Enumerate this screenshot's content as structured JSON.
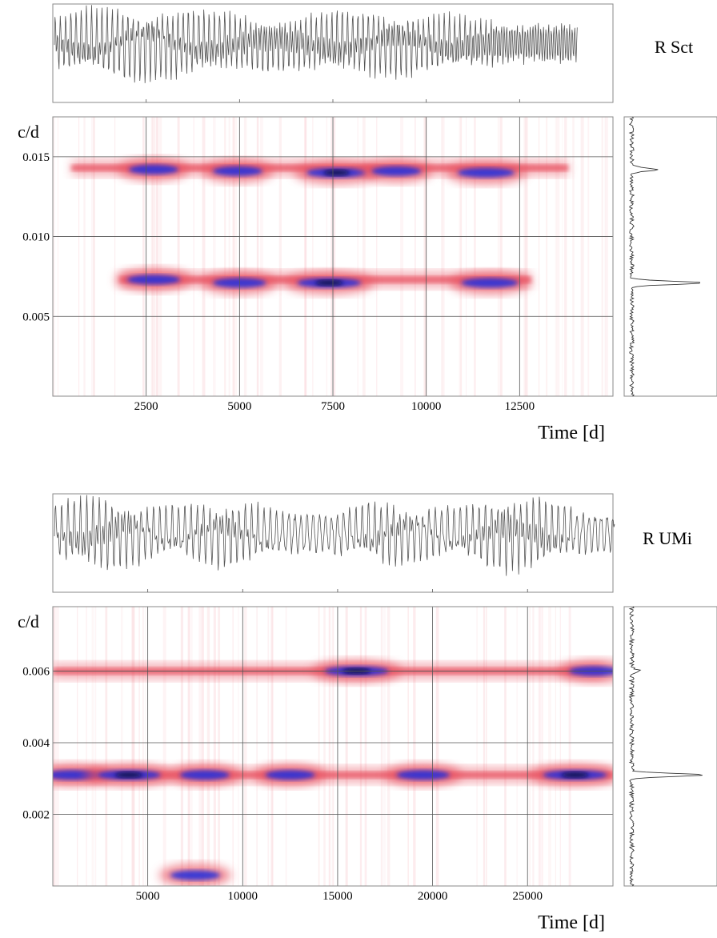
{
  "chart_data": [
    {
      "type": "heatmap",
      "title": "R Sct",
      "ylabel": "c/d",
      "xlabel": "Time [d]",
      "xlim": [
        0,
        15000
      ],
      "ylim": [
        0,
        0.0175
      ],
      "x_ticks": [
        2500,
        5000,
        7500,
        10000,
        12500
      ],
      "y_ticks": [
        0.005,
        0.01,
        0.015
      ],
      "x_tick_labels": [
        "2500",
        "5000",
        "7500",
        "10000",
        "12500"
      ],
      "y_tick_labels": [
        "0.005",
        "0.010",
        "0.015"
      ],
      "grid": true,
      "colors": {
        "low": "#ffffff",
        "mid": "#e8505f",
        "high": "#1e2fe0",
        "peak": "#0a0a40"
      },
      "ridges": [
        {
          "freq": 0.0143,
          "x": [
            500,
            13800
          ]
        },
        {
          "freq": 0.0073,
          "x": [
            1800,
            12800
          ]
        }
      ],
      "peaks": [
        {
          "x": 2700,
          "freq": 0.0142,
          "strength": 0.6
        },
        {
          "x": 4950,
          "freq": 0.0141,
          "strength": 0.6
        },
        {
          "x": 7600,
          "freq": 0.014,
          "strength": 0.9
        },
        {
          "x": 9200,
          "freq": 0.0141,
          "strength": 0.6
        },
        {
          "x": 11600,
          "freq": 0.014,
          "strength": 0.8
        },
        {
          "x": 2700,
          "freq": 0.0073,
          "strength": 0.7
        },
        {
          "x": 5000,
          "freq": 0.0071,
          "strength": 0.7
        },
        {
          "x": 7400,
          "freq": 0.0071,
          "strength": 1.0
        },
        {
          "x": 11700,
          "freq": 0.0071,
          "strength": 0.8
        }
      ],
      "time_series_range": [
        0,
        14000
      ],
      "side_spectrum_peaks": [
        {
          "freq": 0.0142,
          "amp": 0.35
        },
        {
          "freq": 0.0071,
          "amp": 1.0
        }
      ]
    },
    {
      "type": "heatmap",
      "title": "R UMi",
      "ylabel": "c/d",
      "xlabel": "Time [d]",
      "xlim": [
        0,
        29500
      ],
      "ylim": [
        0,
        0.0078
      ],
      "x_ticks": [
        5000,
        10000,
        15000,
        20000,
        25000
      ],
      "y_ticks": [
        0.002,
        0.004,
        0.006
      ],
      "x_tick_labels": [
        "5000",
        "10000",
        "15000",
        "20000",
        "25000"
      ],
      "y_tick_labels": [
        "0.002",
        "0.004",
        "0.006"
      ],
      "grid": true,
      "colors": {
        "low": "#ffffff",
        "mid": "#e8505f",
        "high": "#1e2fe0",
        "peak": "#0a0a40"
      },
      "ridges": [
        {
          "freq": 0.0031,
          "x": [
            0,
            29500
          ]
        },
        {
          "freq": 0.006,
          "x": [
            0,
            29000
          ]
        }
      ],
      "peaks": [
        {
          "x": 1000,
          "freq": 0.0031,
          "strength": 0.7
        },
        {
          "x": 4000,
          "freq": 0.0031,
          "strength": 1.0
        },
        {
          "x": 8000,
          "freq": 0.0031,
          "strength": 0.6
        },
        {
          "x": 12500,
          "freq": 0.0031,
          "strength": 0.6
        },
        {
          "x": 19500,
          "freq": 0.0031,
          "strength": 0.7
        },
        {
          "x": 27500,
          "freq": 0.0031,
          "strength": 1.0
        },
        {
          "x": 16000,
          "freq": 0.006,
          "strength": 1.0
        },
        {
          "x": 28500,
          "freq": 0.006,
          "strength": 0.6
        },
        {
          "x": 7500,
          "freq": 0.0003,
          "strength": 0.6
        }
      ],
      "time_series_range": [
        0,
        29500
      ],
      "side_spectrum_peaks": [
        {
          "freq": 0.0031,
          "amp": 1.0
        },
        {
          "freq": 0.006,
          "amp": 0.12
        }
      ]
    }
  ]
}
